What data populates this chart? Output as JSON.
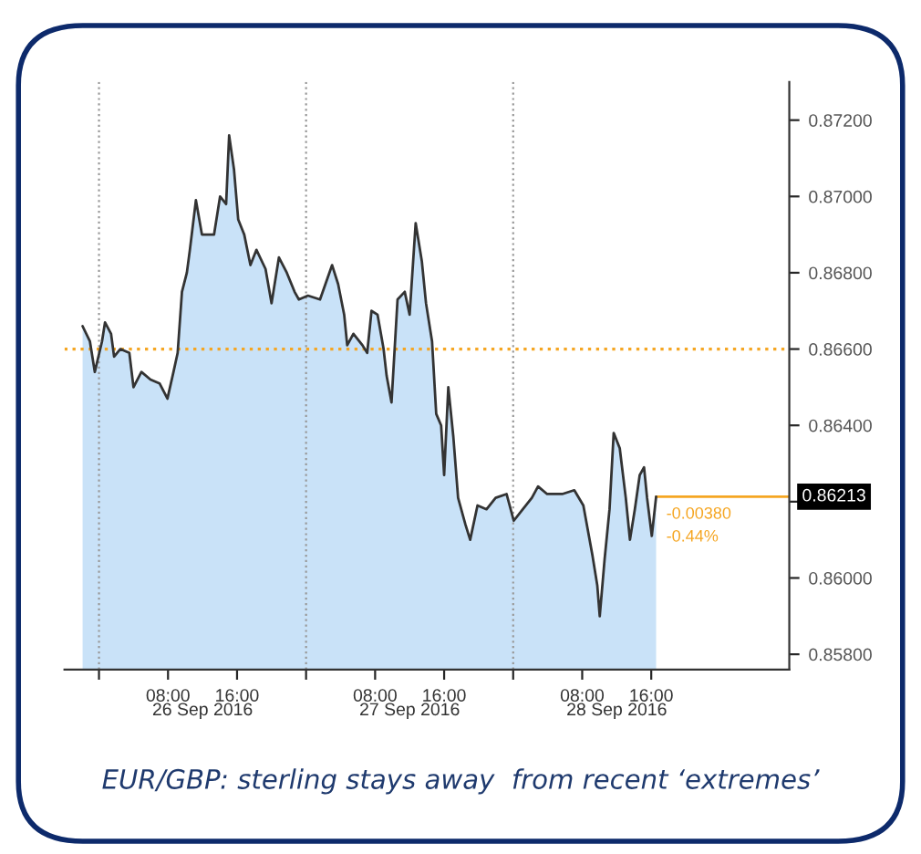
{
  "chart_data": {
    "type": "area",
    "annotations": [
      "EUR/GBP: sterling stays away  from recent ‘extremes’",
      "-0.00380",
      "-0.44%"
    ],
    "x": [
      "2016-09-25T22:06",
      "2016-09-25T22:57",
      "2016-09-25T23:31",
      "2016-09-26T00:21",
      "2016-09-26T00:42",
      "2016-09-26T01:24",
      "2016-09-26T01:45",
      "2016-09-26T02:28",
      "2016-09-26T03:31",
      "2016-09-26T04:00",
      "2016-09-26T04:55",
      "2016-09-26T05:58",
      "2016-09-26T07:01",
      "2016-09-26T07:56",
      "2016-09-26T08:38",
      "2016-09-26T09:07",
      "2016-09-26T09:37",
      "2016-09-26T10:11",
      "2016-09-26T10:32",
      "2016-09-26T11:14",
      "2016-09-26T11:56",
      "2016-09-26T12:38",
      "2016-09-26T13:20",
      "2016-09-26T14:02",
      "2016-09-26T14:44",
      "2016-09-26T15:05",
      "2016-09-26T15:39",
      "2016-09-26T16:08",
      "2016-09-26T16:50",
      "2016-09-26T17:33",
      "2016-09-26T18:15",
      "2016-09-26T19:18",
      "2016-09-26T20:00",
      "2016-09-26T20:51",
      "2016-09-26T21:46",
      "2016-09-26T22:40",
      "2016-09-26T23:10",
      "2016-09-27T00:13",
      "2016-09-27T01:37",
      "2016-09-27T03:01",
      "2016-09-27T03:43",
      "2016-09-27T04:25",
      "2016-09-27T04:46",
      "2016-09-27T05:29",
      "2016-09-27T06:32",
      "2016-09-27T07:05",
      "2016-09-27T07:35",
      "2016-09-27T08:17",
      "2016-09-27T08:59",
      "2016-09-27T09:20",
      "2016-09-27T09:54",
      "2016-09-27T10:36",
      "2016-09-27T11:26",
      "2016-09-27T12:00",
      "2016-09-27T12:42",
      "2016-09-27T13:25",
      "2016-09-27T13:54",
      "2016-09-27T14:36",
      "2016-09-27T15:05",
      "2016-09-27T15:39",
      "2016-09-27T16:00",
      "2016-09-27T16:29",
      "2016-09-27T17:04",
      "2016-09-27T17:37",
      "2016-09-27T18:28",
      "2016-09-27T19:01",
      "2016-09-27T19:52",
      "2016-09-27T20:55",
      "2016-09-27T21:58",
      "2016-09-27T23:14",
      "2016-09-28T00:04",
      "2016-09-28T01:07",
      "2016-09-28T02:10",
      "2016-09-28T02:53",
      "2016-09-28T03:56",
      "2016-09-28T05:41",
      "2016-09-28T07:05",
      "2016-09-28T08:08",
      "2016-09-28T09:11",
      "2016-09-28T09:45",
      "2016-09-28T10:02",
      "2016-09-28T10:36",
      "2016-09-28T11:10",
      "2016-09-28T11:39",
      "2016-09-28T12:21",
      "2016-09-28T13:03",
      "2016-09-28T13:32",
      "2016-09-28T14:06",
      "2016-09-28T14:40",
      "2016-09-28T15:10",
      "2016-09-28T15:31",
      "2016-09-28T16:04",
      "2016-09-28T16:34"
    ],
    "series": [
      {
        "color": "#c9e2f8",
        "values": [
          0.8666,
          0.8662,
          0.8654,
          0.8662,
          0.8667,
          0.8664,
          0.8658,
          0.866,
          0.8659,
          0.865,
          0.8654,
          0.8652,
          0.8651,
          0.8647,
          0.8654,
          0.8659,
          0.8675,
          0.868,
          0.8686,
          0.8699,
          0.869,
          0.869,
          0.869,
          0.87,
          0.8698,
          0.8716,
          0.8707,
          0.8694,
          0.869,
          0.8682,
          0.8686,
          0.8681,
          0.8672,
          0.8684,
          0.868,
          0.8675,
          0.8673,
          0.8674,
          0.8673,
          0.8682,
          0.8677,
          0.8669,
          0.8661,
          0.8664,
          0.8661,
          0.8659,
          0.867,
          0.8669,
          0.866,
          0.8653,
          0.8646,
          0.8673,
          0.8675,
          0.8669,
          0.8693,
          0.8683,
          0.8672,
          0.8662,
          0.8643,
          0.864,
          0.8627,
          0.865,
          0.8637,
          0.8621,
          0.8614,
          0.861,
          0.8619,
          0.8618,
          0.8621,
          0.8622,
          0.8615,
          0.8618,
          0.8621,
          0.8624,
          0.8622,
          0.8622,
          0.8623,
          0.8619,
          0.8606,
          0.8598,
          0.859,
          0.8605,
          0.8618,
          0.8638,
          0.8634,
          0.8621,
          0.861,
          0.8618,
          0.8627,
          0.8629,
          0.8621,
          0.8611,
          0.86213
        ]
      }
    ],
    "xlim": [
      "2016-09-25T20:00",
      "2016-09-29T08:00"
    ],
    "xticks": [
      {
        "value": "2016-09-26T00:00",
        "label": null
      },
      {
        "value": "2016-09-26T08:00",
        "label": "08:00"
      },
      {
        "value": "2016-09-26T16:00",
        "label": "16:00"
      },
      {
        "value": "2016-09-27T00:00",
        "label": null
      },
      {
        "value": "2016-09-27T08:00",
        "label": "08:00"
      },
      {
        "value": "2016-09-27T16:00",
        "label": "16:00"
      },
      {
        "value": "2016-09-28T00:00",
        "label": null
      },
      {
        "value": "2016-09-28T08:00",
        "label": "08:00"
      },
      {
        "value": "2016-09-28T16:00",
        "label": "16:00"
      }
    ],
    "x2lim": [
      "2016-09-25T20:00",
      "2016-09-29T08:00"
    ],
    "x2ticks": [
      {
        "value": "2016-09-26T12:00",
        "label": "26 Sep 2016"
      },
      {
        "value": "2016-09-27T12:00",
        "label": "27 Sep 2016"
      },
      {
        "value": "2016-09-28T12:00",
        "label": "28 Sep 2016"
      }
    ],
    "ylim": [
      0.8576,
      0.873
    ],
    "yticks": [
      {
        "value": 0.872,
        "label": "0.87200"
      },
      {
        "value": 0.87,
        "label": "0.87000"
      },
      {
        "value": 0.868,
        "label": "0.86800"
      },
      {
        "value": 0.866,
        "label": "0.86600"
      },
      {
        "value": 0.864,
        "label": "0.86400"
      },
      {
        "value": 0.862,
        "label": null
      },
      {
        "value": 0.86,
        "label": "0.86000"
      },
      {
        "value": 0.858,
        "label": "0.85800"
      }
    ],
    "ref_lines": [
      {
        "axis": "y",
        "value": 0.866,
        "color": "#f5a623",
        "line_style": "dotted"
      },
      {
        "axis": "y",
        "value": 0.86213,
        "label": "0.86213",
        "color": "#f5a623",
        "line_style": "solid"
      },
      {
        "axis": "x",
        "value": "2016-09-26T00:00",
        "color": "#999999",
        "line_style": "dotted"
      },
      {
        "axis": "x",
        "value": "2016-09-27T00:00",
        "color": "#999999",
        "line_style": "dotted"
      },
      {
        "axis": "x",
        "value": "2016-09-28T00:00",
        "color": "#999999",
        "line_style": "dotted"
      }
    ],
    "grid": false,
    "legend": false
  }
}
